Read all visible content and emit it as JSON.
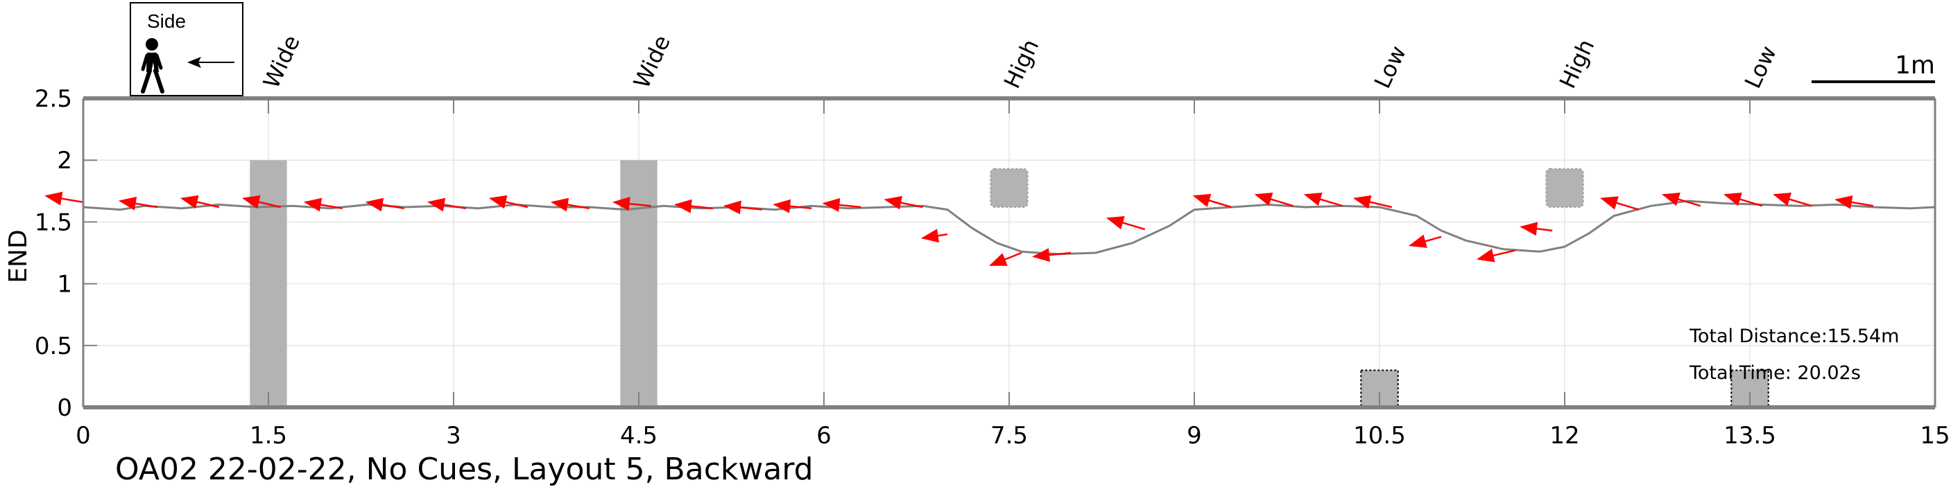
{
  "chart_data": {
    "type": "line",
    "title": "OA02 22-02-22, No Cues, Layout 5, Backward",
    "xlabel": "",
    "ylabel": "END",
    "xlim": [
      0,
      15
    ],
    "ylim": [
      0,
      2.5
    ],
    "x_ticks": [
      "0",
      "1.5",
      "3",
      "4.5",
      "6",
      "7.5",
      "9",
      "10.5",
      "12",
      "13.5",
      "15"
    ],
    "y_ticks": [
      "0",
      "0.5",
      "1",
      "1.5",
      "2",
      "2.5"
    ],
    "grid": true,
    "legend": {
      "label": "Side",
      "position": "top-left",
      "icon": "walking-person-icon",
      "direction": "left-arrow-icon"
    },
    "scale_bar": {
      "label": "1m",
      "length_m": 1
    },
    "stats": {
      "total_distance": "Total Distance:15.54m",
      "total_time": "Total Time: 20.02s"
    },
    "obstacles": [
      {
        "label": "Wide",
        "type": "wide",
        "x": 1.5,
        "y_min": 0,
        "y_max": 2.0,
        "width": 0.3
      },
      {
        "label": "Wide",
        "type": "wide",
        "x": 4.5,
        "y_min": 0,
        "y_max": 2.0,
        "width": 0.3
      },
      {
        "label": "High",
        "type": "high",
        "x": 7.5,
        "y_min": 1.62,
        "y_max": 1.93,
        "width": 0.3
      },
      {
        "label": "Low",
        "type": "low",
        "x": 10.5,
        "y_min": 0,
        "y_max": 0.3,
        "width": 0.3
      },
      {
        "label": "High",
        "type": "high",
        "x": 12.0,
        "y_min": 1.62,
        "y_max": 1.93,
        "width": 0.3
      },
      {
        "label": "Low",
        "type": "low",
        "x": 13.5,
        "y_min": 0,
        "y_max": 0.3,
        "width": 0.3
      }
    ],
    "series": [
      {
        "x": [
          0,
          0.3,
          0.5,
          0.8,
          1.1,
          1.4,
          1.7,
          2.0,
          2.3,
          2.6,
          2.9,
          3.2,
          3.5,
          3.8,
          4.1,
          4.4,
          4.7,
          5.0,
          5.3,
          5.6,
          5.9,
          6.2,
          6.5,
          6.8,
          7.0,
          7.2,
          7.4,
          7.6,
          7.9,
          8.2,
          8.5,
          8.8,
          9.0,
          9.3,
          9.6,
          9.9,
          10.2,
          10.5,
          10.8,
          11.0,
          11.2,
          11.5,
          11.8,
          12.0,
          12.2,
          12.4,
          12.7,
          13.0,
          13.3,
          13.6,
          13.9,
          14.2,
          14.5,
          14.8,
          15.0
        ],
        "y": [
          1.62,
          1.6,
          1.63,
          1.61,
          1.64,
          1.62,
          1.63,
          1.61,
          1.64,
          1.62,
          1.63,
          1.61,
          1.64,
          1.62,
          1.62,
          1.6,
          1.63,
          1.61,
          1.62,
          1.6,
          1.63,
          1.61,
          1.62,
          1.63,
          1.6,
          1.45,
          1.33,
          1.26,
          1.24,
          1.25,
          1.33,
          1.47,
          1.6,
          1.62,
          1.64,
          1.62,
          1.63,
          1.62,
          1.55,
          1.43,
          1.35,
          1.28,
          1.26,
          1.3,
          1.41,
          1.55,
          1.63,
          1.67,
          1.65,
          1.64,
          1.63,
          1.64,
          1.62,
          1.61,
          1.62
        ]
      }
    ],
    "arrows": [
      {
        "x": 0.0,
        "y": 1.66,
        "dx": -0.3,
        "dy": 0.05
      },
      {
        "x": 0.6,
        "y": 1.62,
        "dx": -0.3,
        "dy": 0.05
      },
      {
        "x": 1.1,
        "y": 1.62,
        "dx": -0.3,
        "dy": 0.07
      },
      {
        "x": 1.6,
        "y": 1.62,
        "dx": -0.3,
        "dy": 0.07
      },
      {
        "x": 2.1,
        "y": 1.61,
        "dx": -0.3,
        "dy": 0.05
      },
      {
        "x": 2.6,
        "y": 1.61,
        "dx": -0.3,
        "dy": 0.05
      },
      {
        "x": 3.1,
        "y": 1.61,
        "dx": -0.3,
        "dy": 0.05
      },
      {
        "x": 3.6,
        "y": 1.62,
        "dx": -0.3,
        "dy": 0.07
      },
      {
        "x": 4.1,
        "y": 1.61,
        "dx": -0.3,
        "dy": 0.05
      },
      {
        "x": 4.6,
        "y": 1.63,
        "dx": -0.3,
        "dy": 0.03
      },
      {
        "x": 5.1,
        "y": 1.61,
        "dx": -0.3,
        "dy": 0.03
      },
      {
        "x": 5.5,
        "y": 1.6,
        "dx": -0.3,
        "dy": 0.03
      },
      {
        "x": 5.9,
        "y": 1.61,
        "dx": -0.3,
        "dy": 0.03
      },
      {
        "x": 6.3,
        "y": 1.62,
        "dx": -0.3,
        "dy": 0.03
      },
      {
        "x": 6.8,
        "y": 1.62,
        "dx": -0.3,
        "dy": 0.06
      },
      {
        "x": 7.0,
        "y": 1.4,
        "dx": -0.2,
        "dy": -0.03
      },
      {
        "x": 7.6,
        "y": 1.25,
        "dx": -0.25,
        "dy": -0.1
      },
      {
        "x": 8.0,
        "y": 1.25,
        "dx": -0.3,
        "dy": -0.03
      },
      {
        "x": 8.6,
        "y": 1.44,
        "dx": -0.3,
        "dy": 0.09
      },
      {
        "x": 9.3,
        "y": 1.62,
        "dx": -0.3,
        "dy": 0.09
      },
      {
        "x": 9.8,
        "y": 1.63,
        "dx": -0.3,
        "dy": 0.09
      },
      {
        "x": 10.2,
        "y": 1.63,
        "dx": -0.3,
        "dy": 0.09
      },
      {
        "x": 10.6,
        "y": 1.62,
        "dx": -0.3,
        "dy": 0.07
      },
      {
        "x": 11.0,
        "y": 1.38,
        "dx": -0.25,
        "dy": -0.07
      },
      {
        "x": 11.6,
        "y": 1.27,
        "dx": -0.3,
        "dy": -0.07
      },
      {
        "x": 11.9,
        "y": 1.43,
        "dx": -0.25,
        "dy": 0.03
      },
      {
        "x": 12.6,
        "y": 1.6,
        "dx": -0.3,
        "dy": 0.09
      },
      {
        "x": 13.1,
        "y": 1.63,
        "dx": -0.3,
        "dy": 0.09
      },
      {
        "x": 13.6,
        "y": 1.63,
        "dx": -0.3,
        "dy": 0.09
      },
      {
        "x": 14.0,
        "y": 1.63,
        "dx": -0.3,
        "dy": 0.09
      },
      {
        "x": 14.5,
        "y": 1.63,
        "dx": -0.3,
        "dy": 0.05
      }
    ],
    "colors": {
      "trajectory": "#808080",
      "arrows": "#ff0000",
      "obstacle": "#b3b3b3",
      "axis": "#808080",
      "grid": "#e6e6e6"
    }
  }
}
